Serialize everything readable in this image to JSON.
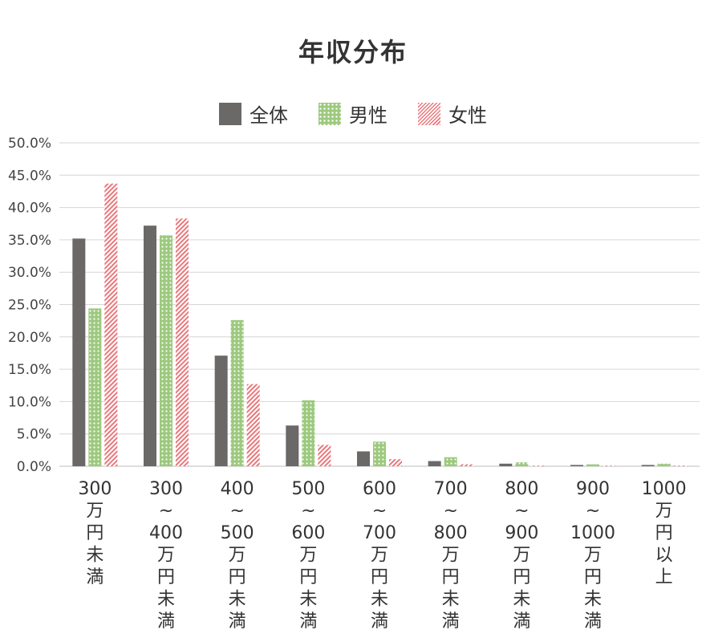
{
  "chart_data": {
    "type": "bar",
    "title": "年収分布",
    "categories": [
      [
        "300",
        "万",
        "円",
        "未",
        "満"
      ],
      [
        "300",
        "~",
        "400",
        "万",
        "円",
        "未",
        "満"
      ],
      [
        "400",
        "~",
        "500",
        "万",
        "円",
        "未",
        "満"
      ],
      [
        "500",
        "~",
        "600",
        "万",
        "円",
        "未",
        "満"
      ],
      [
        "600",
        "~",
        "700",
        "万",
        "円",
        "未",
        "満"
      ],
      [
        "700",
        "~",
        "800",
        "万",
        "円",
        "未",
        "満"
      ],
      [
        "800",
        "~",
        "900",
        "万",
        "円",
        "未",
        "満"
      ],
      [
        "900",
        "~",
        "1000",
        "万",
        "円",
        "未",
        "満"
      ],
      [
        "1000",
        "万",
        "円",
        "以",
        "上"
      ]
    ],
    "series": [
      {
        "name": "全体",
        "color": "#6b6868",
        "pattern": "solid",
        "values": [
          35.2,
          37.2,
          17.1,
          6.3,
          2.3,
          0.8,
          0.4,
          0.2,
          0.2
        ]
      },
      {
        "name": "男性",
        "color": "#9dc97e",
        "pattern": "dots",
        "values": [
          24.4,
          35.7,
          22.6,
          10.2,
          3.8,
          1.4,
          0.6,
          0.3,
          0.4
        ]
      },
      {
        "name": "女性",
        "color": "#e9787c",
        "pattern": "stripes",
        "values": [
          43.7,
          38.3,
          12.7,
          3.3,
          1.1,
          0.3,
          0.1,
          0.1,
          0.1
        ]
      }
    ],
    "ylim": [
      0,
      50
    ],
    "yticks": [
      "0.0%",
      "5.0%",
      "10.0%",
      "15.0%",
      "20.0%",
      "25.0%",
      "30.0%",
      "35.0%",
      "40.0%",
      "45.0%",
      "50.0%"
    ],
    "grid": true,
    "legend": "top-center"
  }
}
